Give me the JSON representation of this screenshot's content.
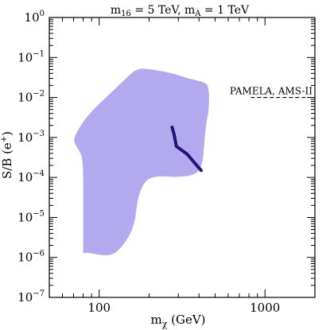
{
  "chart_data": {
    "type": "area",
    "title": "m16 = 5 TeV, mA = 1 TeV",
    "title_parts": {
      "m16_sym": "m",
      "m16_sub": "16",
      "m16_val": " = 5 TeV, ",
      "mA_sym": "m",
      "mA_sub": "A",
      "mA_val": " = 1 TeV"
    },
    "xlabel": {
      "base": "m",
      "sub": "χ",
      "rest": " (GeV)"
    },
    "ylabel": {
      "base": "S/B (e",
      "sup": "+",
      "rest": ")"
    },
    "x_scale": "log",
    "y_scale": "log",
    "xlim": [
      50,
      2000
    ],
    "ylim": [
      1e-07,
      1
    ],
    "x_ticks": [
      {
        "value": 100,
        "label": "100"
      },
      {
        "value": 1000,
        "label": "1000"
      }
    ],
    "y_ticks": [
      {
        "value": 1,
        "base": "10",
        "exp": "0"
      },
      {
        "value": 0.1,
        "base": "10",
        "exp": "−1"
      },
      {
        "value": 0.01,
        "base": "10",
        "exp": "−2"
      },
      {
        "value": 0.001,
        "base": "10",
        "exp": "−3"
      },
      {
        "value": 0.0001,
        "base": "10",
        "exp": "−4"
      },
      {
        "value": 1e-05,
        "base": "10",
        "exp": "−5"
      },
      {
        "value": 1e-06,
        "base": "10",
        "exp": "−6"
      },
      {
        "value": 1e-07,
        "base": "10",
        "exp": "−7"
      }
    ],
    "region": {
      "color": "#b3a9ef",
      "points": [
        [
          70,
          0.0008
        ],
        [
          72,
          0.0012
        ],
        [
          80,
          0.0025
        ],
        [
          92,
          0.005
        ],
        [
          110,
          0.01
        ],
        [
          145,
          0.03
        ],
        [
          170,
          0.055
        ],
        [
          210,
          0.05
        ],
        [
          280,
          0.04
        ],
        [
          340,
          0.03
        ],
        [
          420,
          0.025
        ],
        [
          460,
          0.02
        ],
        [
          460,
          0.005
        ],
        [
          440,
          0.002
        ],
        [
          430,
          0.0007
        ],
        [
          420,
          0.00022
        ],
        [
          390,
          0.00012
        ],
        [
          300,
          0.0001
        ],
        [
          230,
          0.00011
        ],
        [
          190,
          9e-05
        ],
        [
          170,
          3e-05
        ],
        [
          165,
          8e-06
        ],
        [
          150,
          3e-06
        ],
        [
          125,
          1.2e-06
        ],
        [
          105,
          1.1e-06
        ],
        [
          80,
          1.4e-06
        ],
        [
          80,
          1e-06
        ],
        [
          80,
          2e-05
        ],
        [
          80,
          0.0003
        ],
        [
          75,
          0.0005
        ]
      ]
    },
    "series": [
      {
        "color": "#24127a",
        "x": [
          275,
          283,
          292,
          340,
          380,
          412
        ],
        "y": [
          0.0018,
          0.0012,
          0.0006,
          0.00038,
          0.00022,
          0.00015
        ]
      }
    ],
    "reference_line": {
      "label": "PAMELA, AMS-II",
      "y": 0.01,
      "x_start": 820,
      "x_end": 2000,
      "style": "dashed"
    }
  }
}
